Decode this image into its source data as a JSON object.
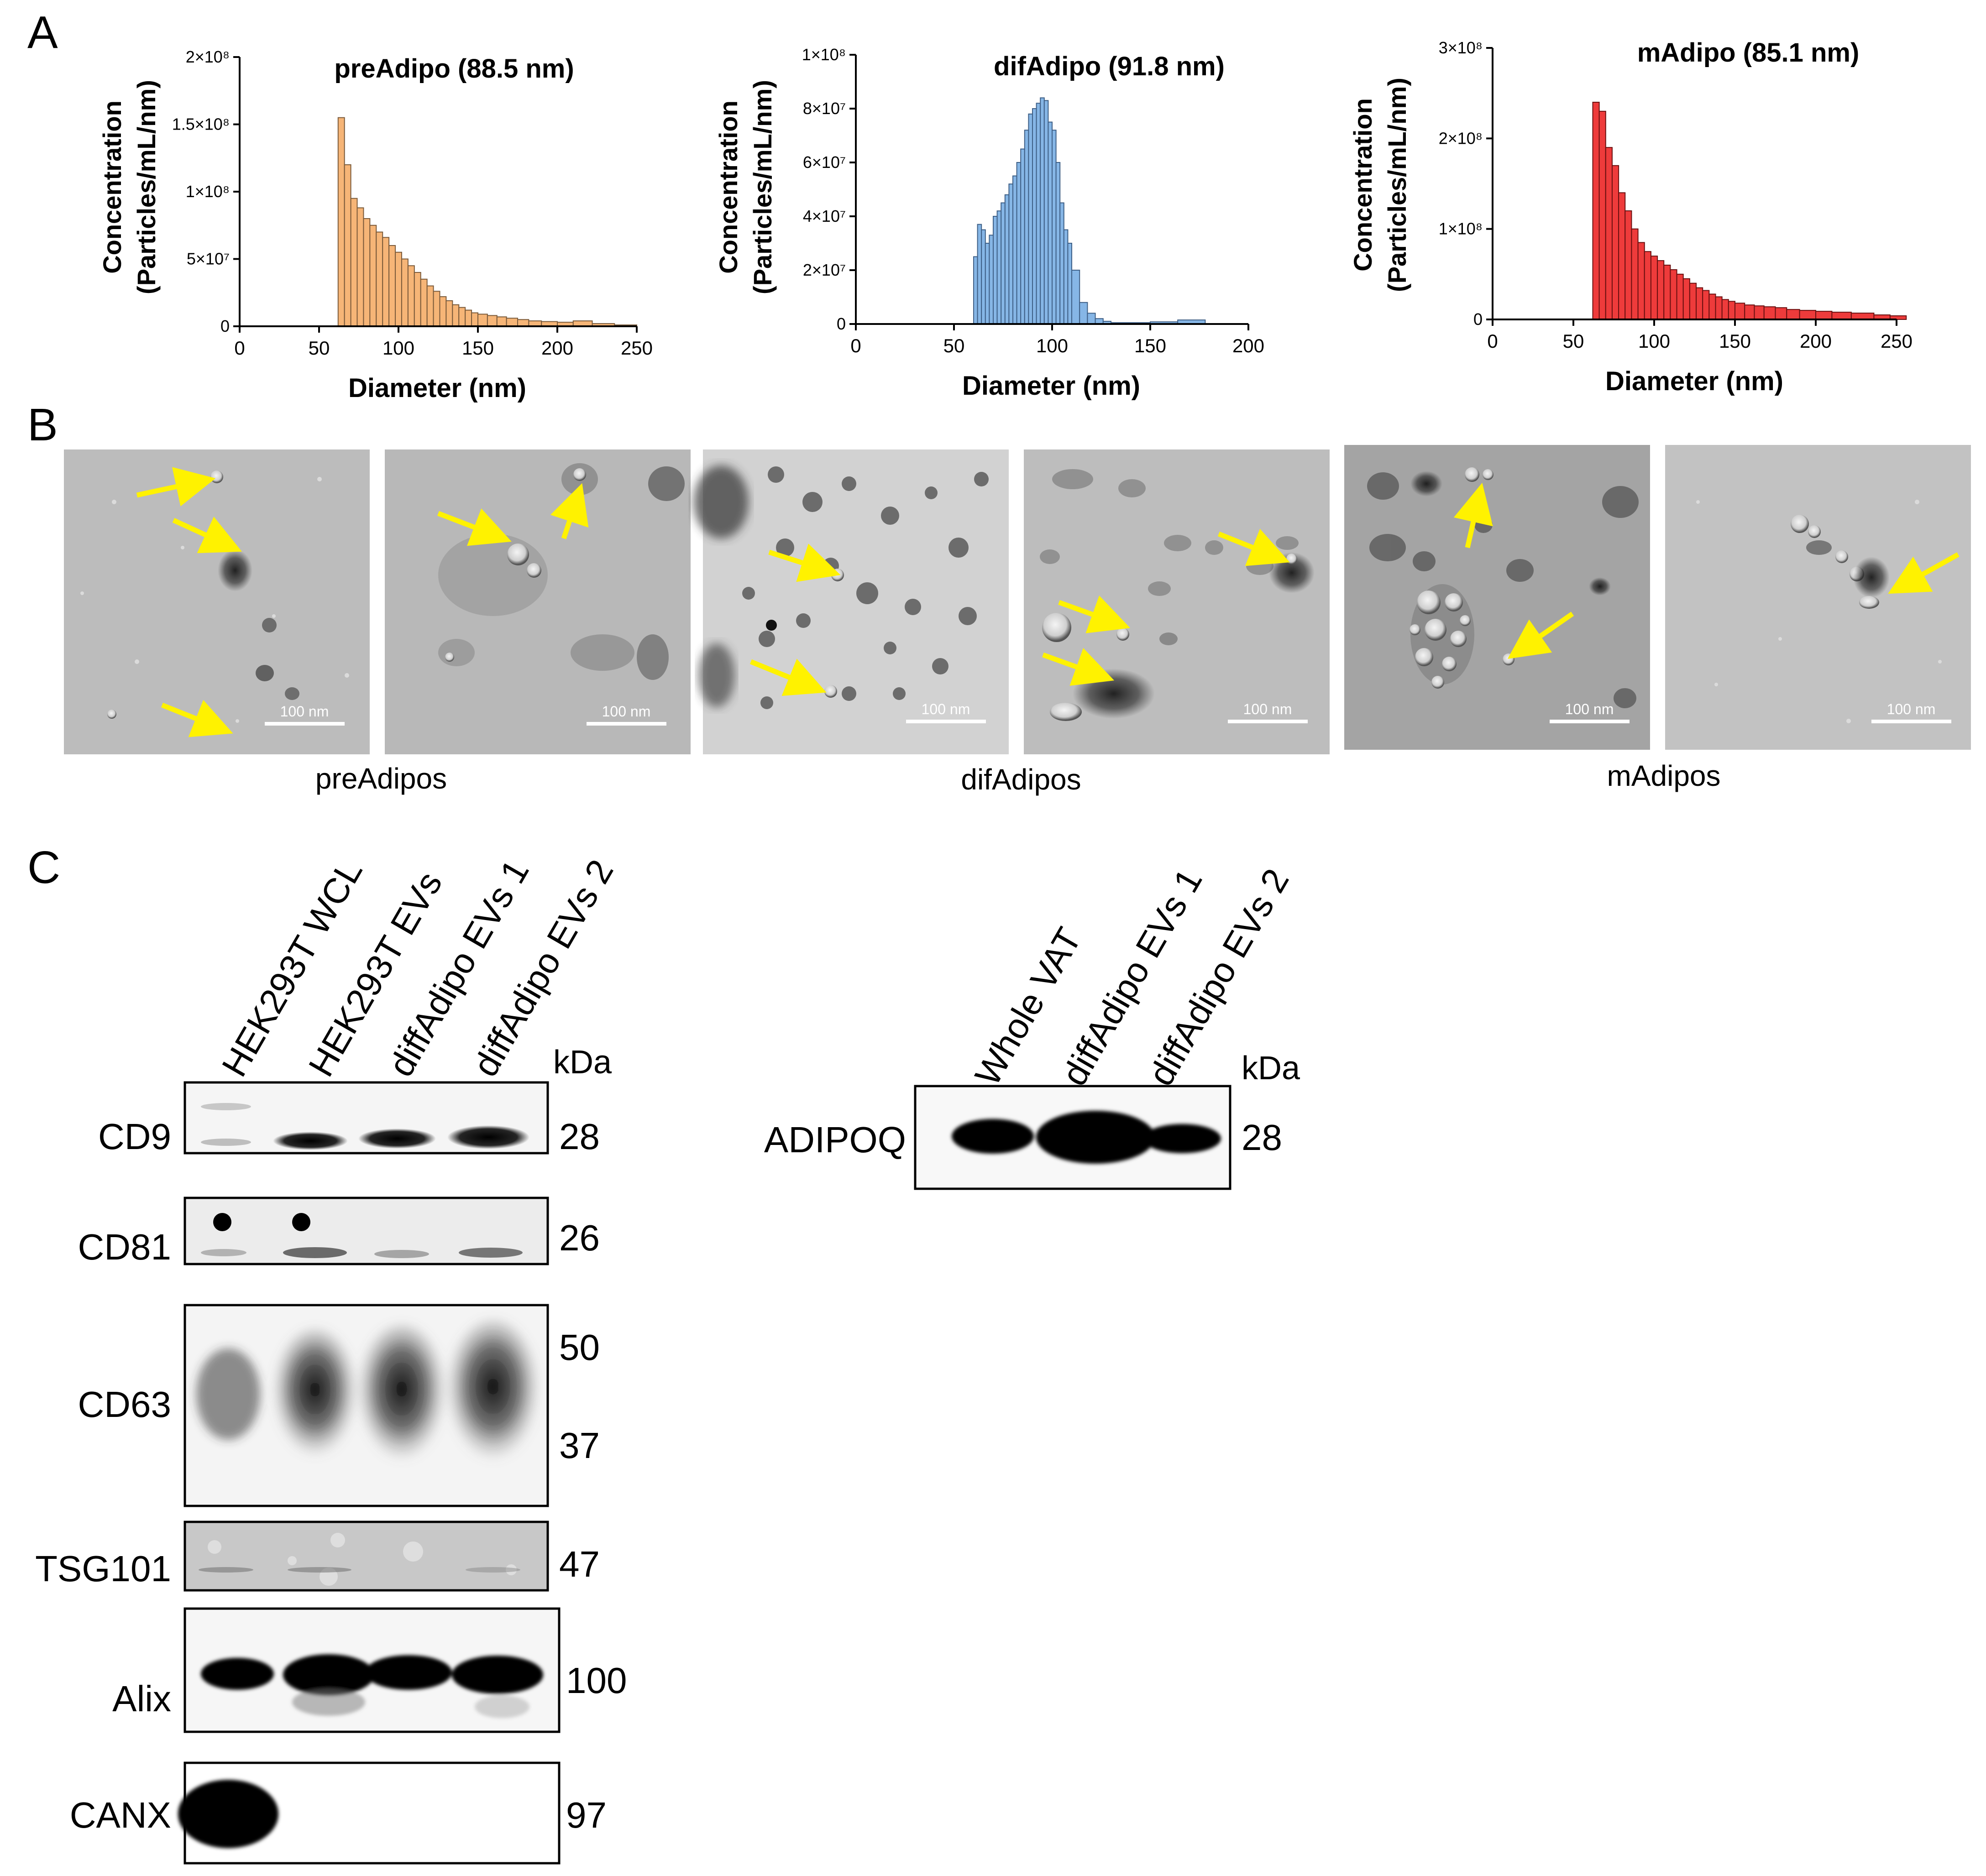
{
  "panels": {
    "a": "A",
    "b": "B",
    "c": "C"
  },
  "chart_data": [
    {
      "type": "bar",
      "title": "preAdipo (88.5 nm)",
      "xlabel": "Diameter (nm)",
      "ylabel_line1": "Concentration",
      "ylabel_line2": "(Particles/mL/nm)",
      "color": "#F6B577",
      "edge": "#7a5a3a",
      "xlim": [
        0,
        250
      ],
      "ylim": [
        0,
        200000000
      ],
      "xticks": [
        0,
        50,
        100,
        150,
        200,
        250
      ],
      "xtick_labels": [
        "0",
        "50",
        "100",
        "150",
        "200",
        "250"
      ],
      "yticks": [
        0,
        50000000,
        100000000,
        150000000,
        200000000
      ],
      "ytick_labels": [
        "0",
        "5×10⁷",
        "1×10⁸",
        "1.5×10⁸",
        "2×10⁸"
      ],
      "x": [
        62,
        66,
        70,
        74,
        78,
        82,
        86,
        90,
        94,
        98,
        102,
        106,
        110,
        114,
        118,
        122,
        126,
        130,
        134,
        138,
        142,
        146,
        150,
        156,
        162,
        168,
        175,
        182,
        190,
        200,
        210,
        222,
        236
      ],
      "values": [
        155000000,
        120000000,
        95000000,
        88000000,
        80000000,
        75000000,
        70000000,
        66000000,
        60000000,
        55000000,
        50000000,
        45000000,
        40000000,
        35000000,
        30000000,
        26000000,
        22000000,
        19000000,
        16000000,
        14000000,
        12000000,
        10000000,
        9000000,
        8000000,
        7000000,
        6000000,
        5000000,
        4000000,
        3500000,
        3000000,
        4000000,
        2000000,
        1000000
      ]
    },
    {
      "type": "bar",
      "title": "difAdipo (91.8 nm)",
      "xlabel": "Diameter (nm)",
      "ylabel_line1": "Concentration",
      "ylabel_line2": "(Particles/mL/nm)",
      "color": "#86B6E6",
      "edge": "#3e5f86",
      "xlim": [
        0,
        200
      ],
      "ylim": [
        0,
        100000000
      ],
      "xticks": [
        0,
        50,
        100,
        150,
        200
      ],
      "xtick_labels": [
        "0",
        "50",
        "100",
        "150",
        "200"
      ],
      "yticks": [
        0,
        20000000,
        40000000,
        60000000,
        80000000,
        100000000
      ],
      "ytick_labels": [
        "0",
        "2×10⁷",
        "4×10⁷",
        "6×10⁷",
        "8×10⁷",
        "1×10⁸"
      ],
      "x": [
        60,
        62,
        64,
        66,
        68,
        70,
        72,
        74,
        76,
        78,
        80,
        82,
        84,
        86,
        88,
        90,
        92,
        94,
        96,
        98,
        100,
        102,
        104,
        106,
        108,
        110,
        114,
        118,
        122,
        126,
        130,
        150,
        164
      ],
      "values": [
        25000000,
        37000000,
        35000000,
        30000000,
        33000000,
        40000000,
        42000000,
        45000000,
        48000000,
        52000000,
        55000000,
        60000000,
        65000000,
        72000000,
        78000000,
        80000000,
        82000000,
        84000000,
        83000000,
        75000000,
        72000000,
        60000000,
        45000000,
        35000000,
        30000000,
        20000000,
        8000000,
        4000000,
        2000000,
        1000000,
        500000,
        800000,
        1500000
      ]
    },
    {
      "type": "bar",
      "title": "mAdipo (85.1 nm)",
      "xlabel": "Diameter (nm)",
      "ylabel_line1": "Concentration",
      "ylabel_line2": "(Particles/mL/nm)",
      "color": "#EE3B3B",
      "edge": "#6a1010",
      "xlim": [
        0,
        250
      ],
      "ylim": [
        0,
        300000000
      ],
      "xticks": [
        0,
        50,
        100,
        150,
        200,
        250
      ],
      "xtick_labels": [
        "0",
        "50",
        "100",
        "150",
        "200",
        "250"
      ],
      "yticks": [
        0,
        100000000,
        200000000,
        300000000
      ],
      "ytick_labels": [
        "0",
        "1×10⁸",
        "2×10⁸",
        "3×10⁸"
      ],
      "x": [
        62,
        66,
        70,
        74,
        78,
        82,
        86,
        90,
        94,
        98,
        102,
        106,
        110,
        114,
        118,
        122,
        126,
        130,
        134,
        138,
        142,
        146,
        150,
        156,
        162,
        168,
        175,
        182,
        190,
        200,
        210,
        222,
        236,
        246
      ],
      "values": [
        240000000,
        230000000,
        190000000,
        170000000,
        140000000,
        120000000,
        100000000,
        85000000,
        75000000,
        70000000,
        65000000,
        60000000,
        55000000,
        50000000,
        45000000,
        40000000,
        35000000,
        32000000,
        28000000,
        25000000,
        22000000,
        20000000,
        18000000,
        16000000,
        15000000,
        14000000,
        13000000,
        11000000,
        10000000,
        9000000,
        8000000,
        7000000,
        5000000,
        4000000
      ]
    }
  ],
  "tem": {
    "scale_bar": "100 nm",
    "groups": [
      "preAdipos",
      "difAdipos",
      "mAdipos"
    ]
  },
  "blot_left": {
    "lanes": [
      "HEK293T WCL",
      "HEK293T EVs",
      "diffAdipo EVs 1",
      "diffAdipo EVs 2"
    ],
    "kda": "kDa",
    "rows": [
      {
        "label": "CD9",
        "mw": [
          "28"
        ]
      },
      {
        "label": "CD81",
        "mw": [
          "26"
        ]
      },
      {
        "label": "CD63",
        "mw": [
          "50",
          "37"
        ]
      },
      {
        "label": "TSG101",
        "mw": [
          "47"
        ]
      },
      {
        "label": "Alix",
        "mw": [
          "100"
        ]
      },
      {
        "label": "CANX",
        "mw": [
          "97"
        ]
      }
    ]
  },
  "blot_right": {
    "lanes": [
      "Whole VAT",
      "diffAdipo EVs 1",
      "diffAdipo EVs 2"
    ],
    "kda": "kDa",
    "label": "ADIPOQ",
    "mw": "28"
  }
}
